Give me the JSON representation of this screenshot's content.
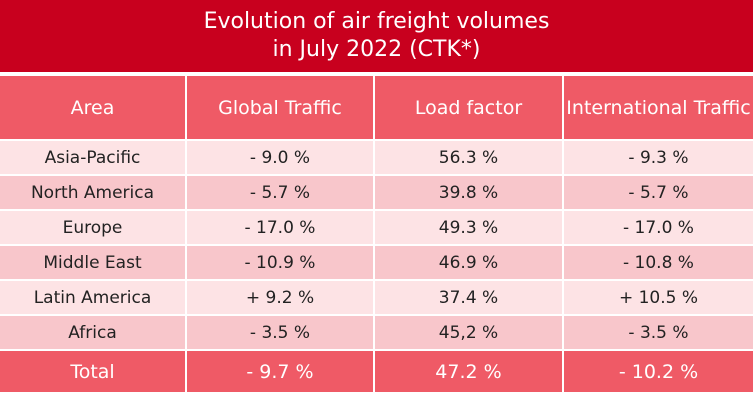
{
  "title": {
    "line1": "Evolution of air freight volumes",
    "line2": "in July 2022 (CTK*)"
  },
  "table": {
    "headers": [
      "Area",
      "Global Traffic",
      "Load factor",
      "International Traffic"
    ],
    "rows": [
      [
        "Asia-Pacific",
        "- 9.0 %",
        "56.3 %",
        "- 9.3 %"
      ],
      [
        "North America",
        "- 5.7 %",
        "39.8 %",
        "- 5.7 %"
      ],
      [
        "Europe",
        "- 17.0 %",
        "49.3 %",
        "- 17.0 %"
      ],
      [
        "Middle East",
        "- 10.9 %",
        "46.9 %",
        "- 10.8 %"
      ],
      [
        "Latin America",
        "+ 9.2 %",
        "37.4 %",
        "+ 10.5 %"
      ],
      [
        "Africa",
        "- 3.5 %",
        "45,2 %",
        "- 3.5 %"
      ]
    ],
    "total": [
      "Total",
      "- 9.7 %",
      "47.2 %",
      "- 10.2 %"
    ]
  },
  "colors": {
    "title_bg": "#c8001e",
    "header_bg": "#ef5a66",
    "row_light": "#fde3e5",
    "row_dark": "#f8c6cb",
    "total_bg": "#ef5a66"
  }
}
